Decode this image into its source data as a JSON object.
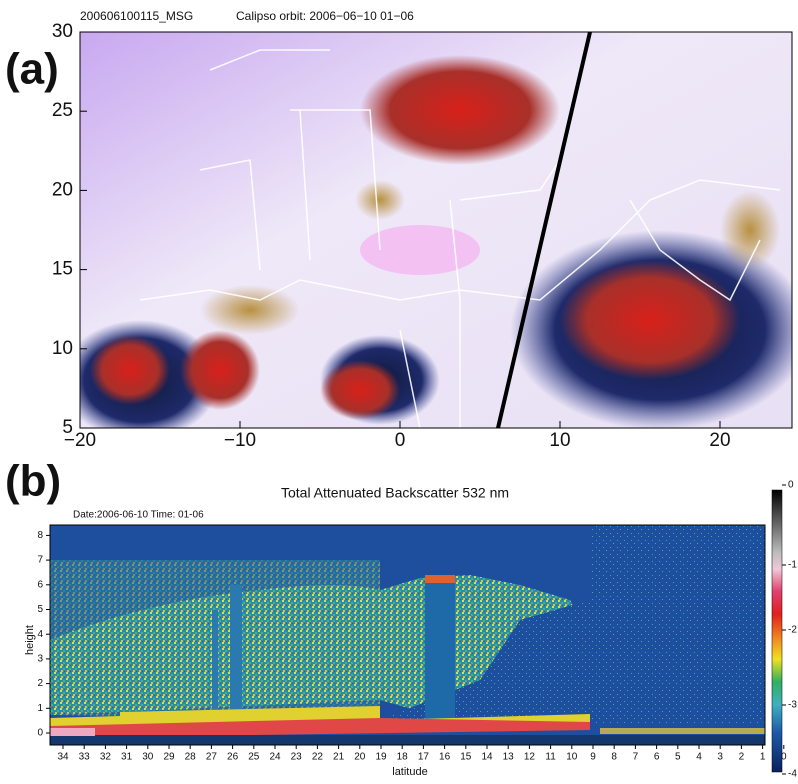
{
  "panel_a": {
    "label": "(a)",
    "header_left": "200606100115_MSG",
    "header_right": "Calipso orbit: 2006−06−10 01−06",
    "x_ticks": [
      "−20",
      "−10",
      "0",
      "10",
      "20"
    ],
    "y_ticks": [
      "30",
      "25",
      "20",
      "15",
      "10",
      "5"
    ]
  },
  "panel_b": {
    "label": "(b)",
    "title": "Total Attenuated Backscatter 532 nm",
    "date": "Date:2006-06-10 Time: 01-06",
    "y_label": "height",
    "x_label": "latitude",
    "y_ticks": [
      "0",
      "1",
      "2",
      "3",
      "4",
      "5",
      "6",
      "7",
      "8"
    ],
    "x_ticks": [
      "34",
      "33",
      "32",
      "31",
      "30",
      "29",
      "28",
      "27",
      "26",
      "25",
      "24",
      "23",
      "22",
      "21",
      "20",
      "19",
      "18",
      "17",
      "16",
      "15",
      "14",
      "13",
      "12",
      "11",
      "10",
      "9",
      "8",
      "7",
      "6",
      "5",
      "4",
      "3",
      "2",
      "1",
      "0"
    ],
    "colorbar_ticks": [
      "0",
      "-1",
      "-2",
      "-3",
      "-4"
    ]
  }
}
